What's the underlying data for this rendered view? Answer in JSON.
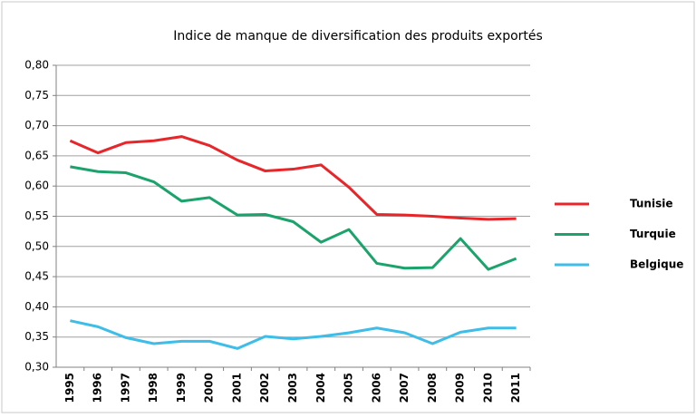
{
  "chart_data": {
    "type": "line",
    "title": "Indice de manque de diversification des  produits exportés",
    "categories": [
      "1995",
      "1996",
      "1997",
      "1998",
      "1999",
      "2000",
      "2001",
      "2002",
      "2003",
      "2004",
      "2005",
      "2006",
      "2007",
      "2008",
      "2009",
      "2010",
      "2011"
    ],
    "series": [
      {
        "name": "Tunisie",
        "color": "#e8262a",
        "values": [
          0.675,
          0.655,
          0.672,
          0.675,
          0.682,
          0.667,
          0.643,
          0.625,
          0.628,
          0.635,
          0.598,
          0.553,
          0.552,
          0.55,
          0.547,
          0.545,
          0.546
        ]
      },
      {
        "name": "Turquie",
        "color": "#1aa36b",
        "values": [
          0.632,
          0.624,
          0.622,
          0.607,
          0.575,
          0.581,
          0.552,
          0.553,
          0.541,
          0.507,
          0.528,
          0.472,
          0.464,
          0.465,
          0.513,
          0.462,
          0.48
        ]
      },
      {
        "name": "Belgique",
        "color": "#3dbde8",
        "values": [
          0.377,
          0.367,
          0.349,
          0.339,
          0.343,
          0.343,
          0.331,
          0.351,
          0.347,
          0.351,
          0.357,
          0.365,
          0.357,
          0.339,
          0.358,
          0.365,
          0.365
        ]
      }
    ],
    "ylim": [
      0.3,
      0.8
    ],
    "yticks": [
      {
        "value": 0.3,
        "label": "0,30"
      },
      {
        "value": 0.35,
        "label": "0,35"
      },
      {
        "value": 0.4,
        "label": "0,40"
      },
      {
        "value": 0.45,
        "label": "0,45"
      },
      {
        "value": 0.5,
        "label": "0,50"
      },
      {
        "value": 0.55,
        "label": "0,55"
      },
      {
        "value": 0.6,
        "label": "0,60"
      },
      {
        "value": 0.65,
        "label": "0,65"
      },
      {
        "value": 0.7,
        "label": "0,70"
      },
      {
        "value": 0.75,
        "label": "0,75"
      },
      {
        "value": 0.8,
        "label": "0,80"
      }
    ],
    "grid": true,
    "legend": "right"
  }
}
